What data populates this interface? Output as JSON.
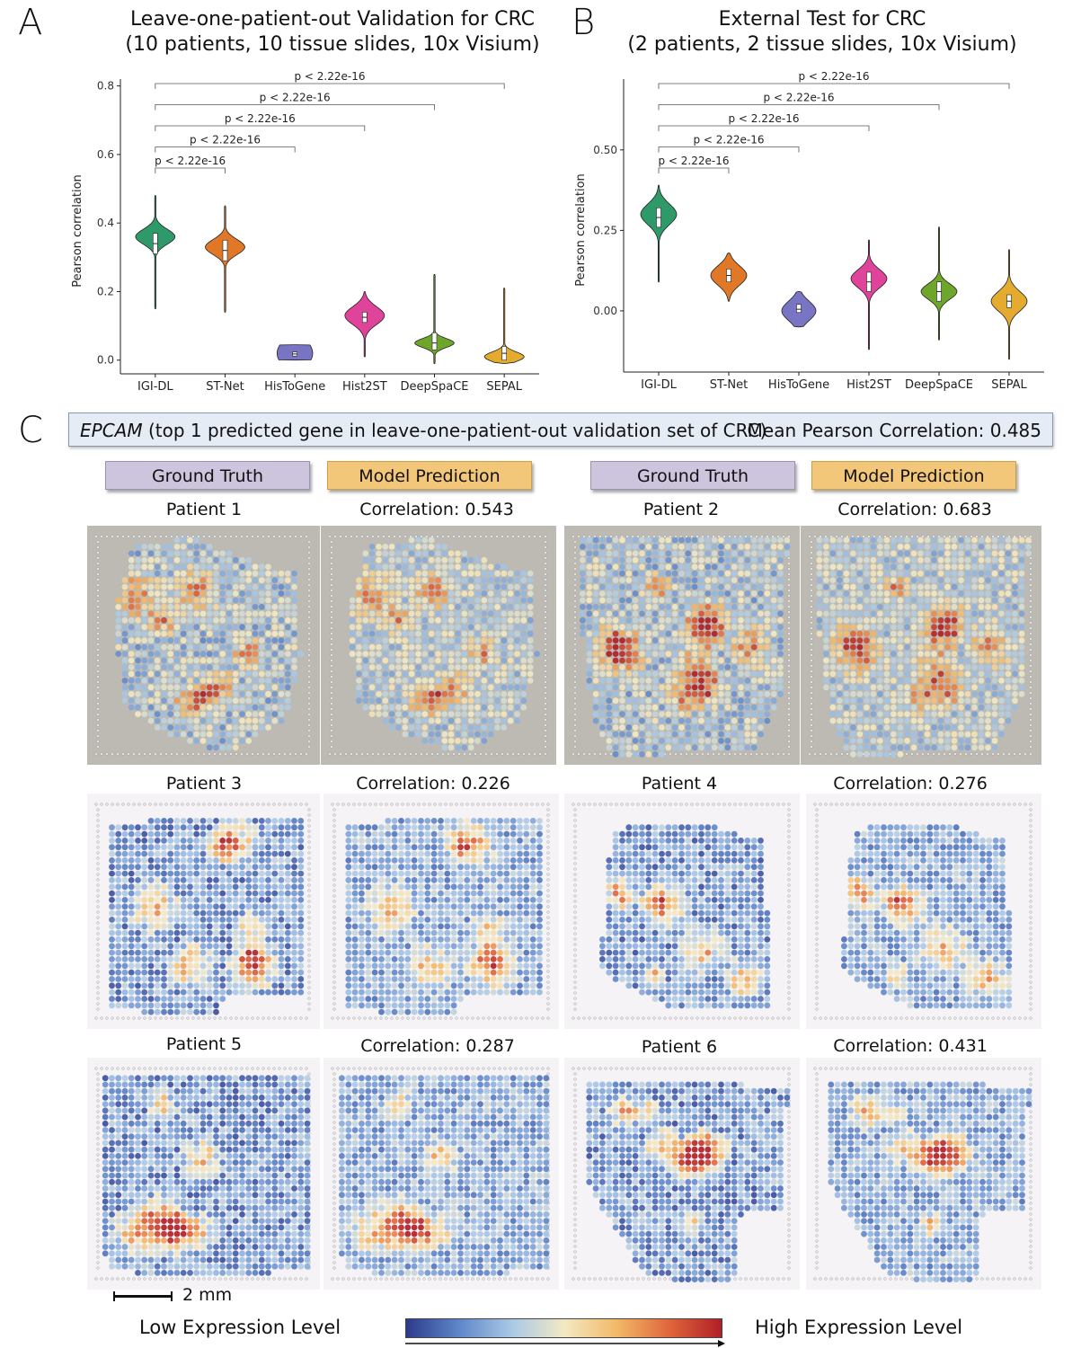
{
  "panels": {
    "a": {
      "letter": "A",
      "title_line1": "Leave-one-patient-out Validation for CRC",
      "title_line2": "(10 patients, 10 tissue slides, 10x Visium)"
    },
    "b": {
      "letter": "B",
      "title_line1": "External Test for CRC",
      "title_line2": "(2 patients, 2 tissue slides, 10x Visium)"
    },
    "c": {
      "letter": "C"
    }
  },
  "chart_data": [
    {
      "type": "violin",
      "panel": "A",
      "ylabel": "Pearson correlation",
      "ylim": [
        -0.04,
        0.82
      ],
      "yticks": [
        0.0,
        0.2,
        0.4,
        0.6,
        0.8
      ],
      "ytick_labels": [
        "0.0",
        "0.2",
        "0.4",
        "0.6",
        "0.8"
      ],
      "categories": [
        "IGI-DL",
        "ST-Net",
        "HisToGene",
        "Hist2ST",
        "DeepSpaCE",
        "SEPAL"
      ],
      "colors": [
        "#2e9a6a",
        "#e07828",
        "#7a74c4",
        "#e0439a",
        "#6ea62c",
        "#e5ab2e"
      ],
      "distributions": [
        {
          "min": 0.15,
          "q1": 0.31,
          "median": 0.34,
          "q3": 0.37,
          "max": 0.48,
          "mode": 0.36,
          "spread": 0.022
        },
        {
          "min": 0.14,
          "q1": 0.29,
          "median": 0.32,
          "q3": 0.35,
          "max": 0.45,
          "mode": 0.33,
          "spread": 0.022
        },
        {
          "min": 0.0,
          "q1": 0.012,
          "median": 0.018,
          "q3": 0.024,
          "max": 0.045,
          "mode": 0.02,
          "spread": 0.042
        },
        {
          "min": 0.01,
          "q1": 0.11,
          "median": 0.125,
          "q3": 0.14,
          "max": 0.2,
          "mode": 0.13,
          "spread": 0.026
        },
        {
          "min": -0.01,
          "q1": 0.03,
          "median": 0.05,
          "q3": 0.08,
          "max": 0.25,
          "mode": 0.05,
          "spread": 0.013
        },
        {
          "min": -0.01,
          "q1": 0.0,
          "median": 0.02,
          "q3": 0.04,
          "max": 0.21,
          "mode": 0.01,
          "spread": 0.014
        }
      ],
      "comparisons": [
        {
          "from": "IGI-DL",
          "to": "ST-Net",
          "label": "p < 2.22e-16"
        },
        {
          "from": "IGI-DL",
          "to": "HisToGene",
          "label": "p < 2.22e-16"
        },
        {
          "from": "IGI-DL",
          "to": "Hist2ST",
          "label": "p < 2.22e-16"
        },
        {
          "from": "IGI-DL",
          "to": "DeepSpaCE",
          "label": "p < 2.22e-16"
        },
        {
          "from": "IGI-DL",
          "to": "SEPAL",
          "label": "p < 2.22e-16"
        }
      ]
    },
    {
      "type": "violin",
      "panel": "B",
      "ylabel": "Pearson correlation",
      "ylim": [
        -0.19,
        0.72
      ],
      "yticks": [
        0.0,
        0.25,
        0.5
      ],
      "ytick_labels": [
        "0.00",
        "0.25",
        "0.50"
      ],
      "categories": [
        "IGI-DL",
        "ST-Net",
        "HisToGene",
        "Hist2ST",
        "DeepSpaCE",
        "SEPAL"
      ],
      "colors": [
        "#2e9a6a",
        "#e07828",
        "#7a74c4",
        "#e0439a",
        "#6ea62c",
        "#e5ab2e"
      ],
      "distributions": [
        {
          "min": 0.09,
          "q1": 0.26,
          "median": 0.29,
          "q3": 0.32,
          "max": 0.39,
          "mode": 0.3,
          "spread": 0.032
        },
        {
          "min": 0.03,
          "q1": 0.09,
          "median": 0.11,
          "q3": 0.13,
          "max": 0.18,
          "mode": 0.11,
          "spread": 0.03
        },
        {
          "min": -0.05,
          "q1": -0.005,
          "median": 0.005,
          "q3": 0.02,
          "max": 0.06,
          "mode": 0.0,
          "spread": 0.03
        },
        {
          "min": -0.12,
          "q1": 0.06,
          "median": 0.09,
          "q3": 0.12,
          "max": 0.22,
          "mode": 0.1,
          "spread": 0.028
        },
        {
          "min": -0.09,
          "q1": 0.03,
          "median": 0.06,
          "q3": 0.09,
          "max": 0.26,
          "mode": 0.06,
          "spread": 0.024
        },
        {
          "min": -0.15,
          "q1": 0.01,
          "median": 0.03,
          "q3": 0.05,
          "max": 0.19,
          "mode": 0.03,
          "spread": 0.03
        }
      ],
      "comparisons": [
        {
          "from": "IGI-DL",
          "to": "ST-Net",
          "label": "p < 2.22e-16"
        },
        {
          "from": "IGI-DL",
          "to": "HisToGene",
          "label": "p < 2.22e-16"
        },
        {
          "from": "IGI-DL",
          "to": "Hist2ST",
          "label": "p < 2.22e-16"
        },
        {
          "from": "IGI-DL",
          "to": "DeepSpaCE",
          "label": "p < 2.22e-16"
        },
        {
          "from": "IGI-DL",
          "to": "SEPAL",
          "label": "p < 2.22e-16"
        }
      ]
    }
  ],
  "banner": {
    "gene": "EPCAM",
    "description": "(top 1 predicted gene in leave-one-patient-out validation set of CRC)",
    "mean_label": "Mean Pearson Correlation:",
    "mean_value": "0.485"
  },
  "tags": {
    "ground_truth": "Ground Truth",
    "model_prediction": "Model Prediction"
  },
  "patients": [
    {
      "name": "Patient 1",
      "corr_label": "Correlation:",
      "corr_value": "0.543",
      "background": "#bdbab3"
    },
    {
      "name": "Patient 2",
      "corr_label": "Correlation:",
      "corr_value": "0.683",
      "background": "#bdbab3"
    },
    {
      "name": "Patient 3",
      "corr_label": "Correlation:",
      "corr_value": "0.226",
      "background": "#f6f3f6"
    },
    {
      "name": "Patient 4",
      "corr_label": "Correlation:",
      "corr_value": "0.276",
      "background": "#f6f3f6"
    },
    {
      "name": "Patient 5",
      "corr_label": "Correlation:",
      "corr_value": "0.287",
      "background": "#f6f3f6"
    },
    {
      "name": "Patient 6",
      "corr_label": "Correlation:",
      "corr_value": "0.431",
      "background": "#f6f3f6"
    }
  ],
  "scale_bar": {
    "label": "2 mm"
  },
  "colorbar": {
    "low_label": "Low Expression Level",
    "high_label": "High Expression Level",
    "stops": [
      "#2d3a8c",
      "#5e86c8",
      "#a9c8e6",
      "#f2e9c4",
      "#f2b968",
      "#e0663b",
      "#b01f27"
    ]
  }
}
